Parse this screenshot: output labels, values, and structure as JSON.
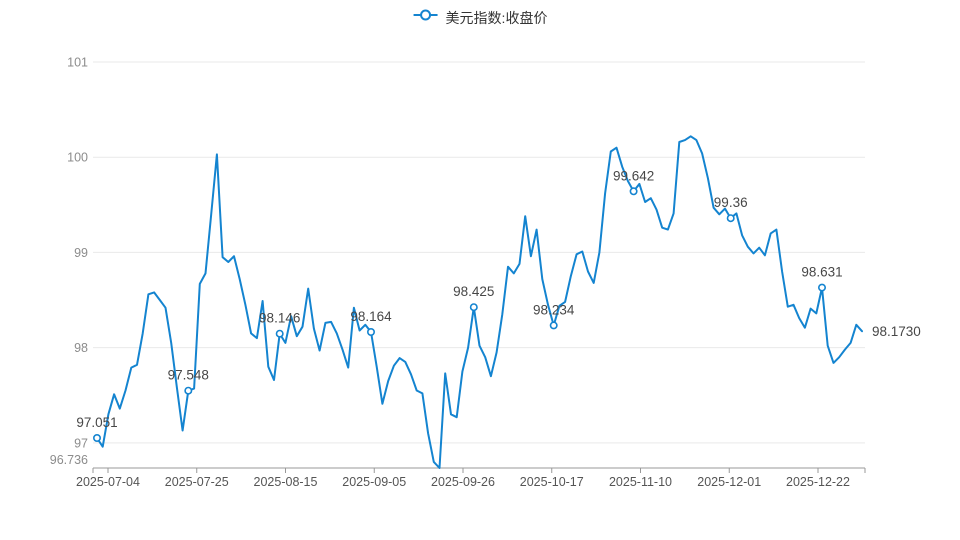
{
  "legend": {
    "label": "美元指数:收盘价"
  },
  "colors": {
    "line": "#1484d0",
    "marker_fill": "#ffffff",
    "grid": "#e9e9e9",
    "axis": "#999999",
    "y_label": "#8c8c8c",
    "x_label": "#555555",
    "value_label": "#474747",
    "legend_text": "#333333",
    "background": "#ffffff"
  },
  "chart_data": {
    "type": "line",
    "title": "",
    "series_name": "美元指数:收盘价",
    "legend_position": "top-center",
    "grid": true,
    "y_axis": {
      "min": 96.736,
      "max": 101,
      "ticks": [
        101,
        100,
        99,
        98,
        97
      ],
      "min_label": "96.736"
    },
    "x_axis": {
      "labels": [
        "2025-07-04",
        "2025-07-25",
        "2025-08-15",
        "2025-09-05",
        "2025-09-26",
        "2025-10-17",
        "2025-11-10",
        "2025-12-01",
        "2025-12-22"
      ]
    },
    "values": [
      97.051,
      96.96,
      97.3,
      97.51,
      97.36,
      97.55,
      97.79,
      97.82,
      98.15,
      98.56,
      98.58,
      98.5,
      98.42,
      98.05,
      97.58,
      97.13,
      97.548,
      97.57,
      98.67,
      98.78,
      99.4,
      100.03,
      98.95,
      98.9,
      98.96,
      98.72,
      98.45,
      98.15,
      98.1,
      98.49,
      97.8,
      97.66,
      98.146,
      98.05,
      98.33,
      98.12,
      98.22,
      98.62,
      98.2,
      97.97,
      98.26,
      98.27,
      98.15,
      97.98,
      97.79,
      98.42,
      98.18,
      98.24,
      98.164,
      97.8,
      97.41,
      97.65,
      97.81,
      97.89,
      97.85,
      97.72,
      97.55,
      97.52,
      97.1,
      96.8,
      96.736,
      97.73,
      97.3,
      97.27,
      97.75,
      98.0,
      98.425,
      98.02,
      97.9,
      97.7,
      97.95,
      98.35,
      98.85,
      98.78,
      98.88,
      99.38,
      98.96,
      99.24,
      98.72,
      98.45,
      98.234,
      98.44,
      98.48,
      98.75,
      98.98,
      99.01,
      98.8,
      98.68,
      99.0,
      99.62,
      100.06,
      100.1,
      99.9,
      99.75,
      99.642,
      99.72,
      99.53,
      99.57,
      99.45,
      99.26,
      99.24,
      99.41,
      100.16,
      100.18,
      100.22,
      100.18,
      100.04,
      99.78,
      99.47,
      99.4,
      99.46,
      99.36,
      99.41,
      99.18,
      99.06,
      98.99,
      99.05,
      98.97,
      99.2,
      99.24,
      98.8,
      98.43,
      98.45,
      98.31,
      98.21,
      98.41,
      98.36,
      98.631,
      98.02,
      97.84,
      97.9,
      97.98,
      98.05,
      98.24,
      98.173
    ],
    "point_labels": [
      {
        "index": 0,
        "text": "97.051"
      },
      {
        "index": 16,
        "text": "97.548"
      },
      {
        "index": 32,
        "text": "98.146"
      },
      {
        "index": 48,
        "text": "98.164"
      },
      {
        "index": 66,
        "text": "98.425"
      },
      {
        "index": 80,
        "text": "98.234"
      },
      {
        "index": 94,
        "text": "99.642"
      },
      {
        "index": 111,
        "text": "99.36"
      },
      {
        "index": 127,
        "text": "98.631"
      },
      {
        "index": 134,
        "text": "98.1730",
        "position": "right"
      }
    ],
    "last_value_label": "98.1730"
  }
}
